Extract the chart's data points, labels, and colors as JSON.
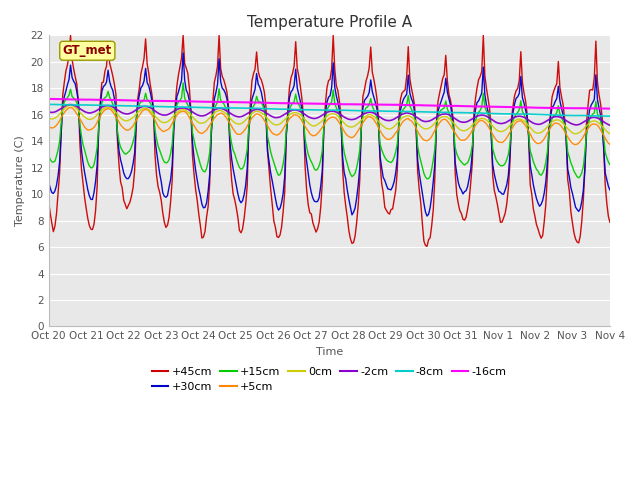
{
  "title": "Temperature Profile A",
  "xlabel": "Time",
  "ylabel": "Temperature (C)",
  "ylim": [
    0,
    22
  ],
  "yticks": [
    0,
    2,
    4,
    6,
    8,
    10,
    12,
    14,
    16,
    18,
    20,
    22
  ],
  "x_labels": [
    "Oct 20",
    "Oct 21",
    "Oct 22",
    "Oct 23",
    "Oct 24",
    "Oct 25",
    "Oct 26",
    "Oct 27",
    "Oct 28",
    "Oct 29",
    "Oct 30",
    "Oct 31",
    "Nov 1",
    "Nov 2",
    "Nov 3",
    "Nov 4"
  ],
  "annotation": "GT_met",
  "series_order": [
    "+45cm",
    "+30cm",
    "+15cm",
    "+5cm",
    "0cm",
    "-2cm",
    "-8cm",
    "-16cm"
  ],
  "series": {
    "+45cm": {
      "color": "#cc0000",
      "lw": 1.0
    },
    "+30cm": {
      "color": "#0000cc",
      "lw": 1.0
    },
    "+15cm": {
      "color": "#00cc00",
      "lw": 1.0
    },
    "+5cm": {
      "color": "#ff8800",
      "lw": 1.0
    },
    "0cm": {
      "color": "#cccc00",
      "lw": 1.0
    },
    "-2cm": {
      "color": "#8800cc",
      "lw": 1.2
    },
    "-8cm": {
      "color": "#00cccc",
      "lw": 1.2
    },
    "-16cm": {
      "color": "#ff00ff",
      "lw": 1.5
    }
  },
  "fig_bg": "#ffffff",
  "plot_bg": "#e8e8e8",
  "grid_color": "#ffffff",
  "title_fontsize": 11,
  "label_fontsize": 8,
  "tick_fontsize": 7.5,
  "legend_fontsize": 8
}
